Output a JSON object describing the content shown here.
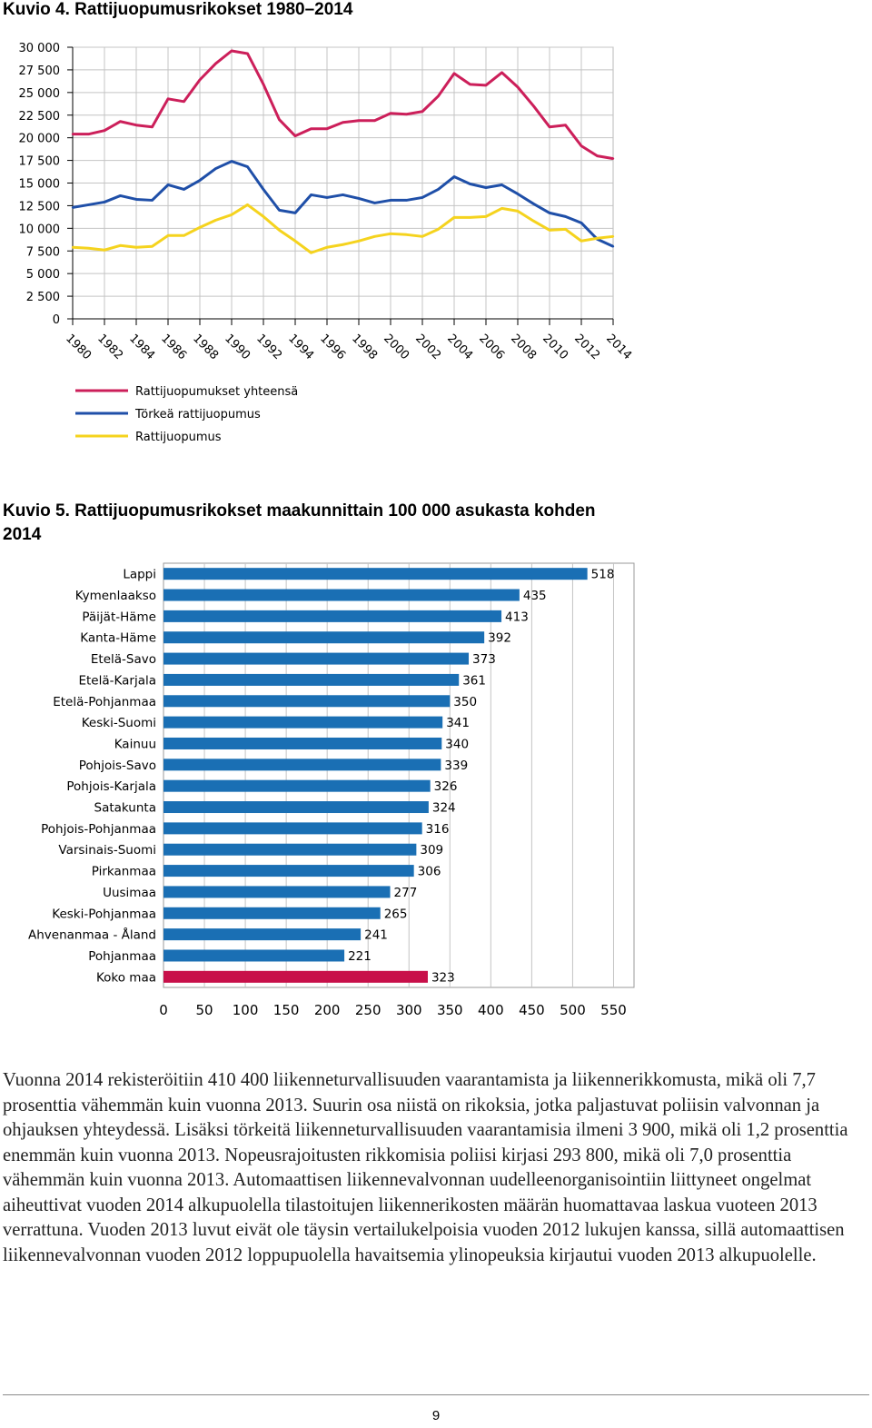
{
  "figure4": {
    "heading": "Kuvio 4. Rattijuopumusrikokset 1980–2014",
    "chart_data": {
      "type": "line",
      "title": "Kuvio 4. Rattijuopumusrikokset 1980–2014",
      "x": [
        1980,
        1981,
        1982,
        1983,
        1984,
        1985,
        1986,
        1987,
        1988,
        1989,
        1990,
        1991,
        1992,
        1993,
        1994,
        1995,
        1996,
        1997,
        1998,
        1999,
        2000,
        2001,
        2002,
        2003,
        2004,
        2005,
        2006,
        2007,
        2008,
        2009,
        2010,
        2011,
        2012,
        2013,
        2014
      ],
      "x_tick_labels": [
        "1980",
        "1982",
        "1984",
        "1986",
        "1988",
        "1990",
        "1992",
        "1994",
        "1996",
        "1998",
        "2000",
        "2002",
        "2004",
        "2006",
        "2008",
        "2010",
        "2012",
        "2014"
      ],
      "y_tick_labels": [
        "0",
        "2 500",
        "5 000",
        "7 500",
        "10 000",
        "12 500",
        "15 000",
        "17 500",
        "20 000",
        "22 500",
        "25 000",
        "27 500",
        "30 000"
      ],
      "ylim": [
        0,
        30000
      ],
      "xlabel": "",
      "ylabel": "",
      "grid": true,
      "series": [
        {
          "name": "Rattijuopumukset yhteensä",
          "color": "#cc1f5a",
          "values": [
            20400,
            20400,
            20800,
            21800,
            21400,
            21200,
            24300,
            24000,
            26400,
            28200,
            29600,
            29300,
            25900,
            22000,
            20200,
            21000,
            21000,
            21700,
            21900,
            21900,
            22700,
            22600,
            22900,
            24600,
            27100,
            25900,
            25800,
            27200,
            25600,
            23500,
            21200,
            21400,
            19100,
            18000,
            17700
          ]
        },
        {
          "name": "Törkeä rattijuopumus",
          "color": "#1f4fa8",
          "values": [
            12300,
            12600,
            12900,
            13600,
            13200,
            13100,
            14800,
            14300,
            15300,
            16600,
            17400,
            16800,
            14300,
            12000,
            11700,
            13700,
            13400,
            13700,
            13300,
            12800,
            13100,
            13100,
            13400,
            14300,
            15700,
            14900,
            14500,
            14800,
            13800,
            12700,
            11700,
            11300,
            10600,
            8800,
            8000
          ]
        },
        {
          "name": "Rattijuopumus",
          "color": "#f5d31e",
          "values": [
            7900,
            7800,
            7600,
            8100,
            7900,
            8000,
            9200,
            9200,
            10100,
            10900,
            11500,
            12600,
            11300,
            9800,
            8600,
            7300,
            7900,
            8200,
            8600,
            9100,
            9400,
            9300,
            9100,
            9900,
            11200,
            11200,
            11300,
            12200,
            11900,
            10800,
            9800,
            9900,
            8600,
            8900,
            9100
          ]
        }
      ],
      "legend": [
        "Rattijuopumukset yhteensä",
        "Törkeä rattijuopumus",
        "Rattijuopumus"
      ],
      "legend_position": "below"
    }
  },
  "figure5": {
    "heading": "Kuvio 5. Rattijuopumusrikokset maakunnittain 100 000 asukasta kohden 2014",
    "chart_data": {
      "type": "bar",
      "orientation": "horizontal",
      "title": "Kuvio 5. Rattijuopumusrikokset maakunnittain 100 000 asukasta kohden 2014",
      "categories": [
        "Lappi",
        "Kymenlaakso",
        "Päijät-Häme",
        "Kanta-Häme",
        "Etelä-Savo",
        "Etelä-Karjala",
        "Etelä-Pohjanmaa",
        "Keski-Suomi",
        "Kainuu",
        "Pohjois-Savo",
        "Pohjois-Karjala",
        "Satakunta",
        "Pohjois-Pohjanmaa",
        "Varsinais-Suomi",
        "Pirkanmaa",
        "Uusimaa",
        "Keski-Pohjanmaa",
        "Ahvenanmaa - Åland",
        "Pohjanmaa",
        "Koko maa"
      ],
      "values": [
        518,
        435,
        413,
        392,
        373,
        361,
        350,
        341,
        340,
        339,
        326,
        324,
        316,
        309,
        306,
        277,
        265,
        241,
        221,
        323
      ],
      "value_labels": [
        "518",
        "435",
        "413",
        "392",
        "373",
        "361",
        "350",
        "341",
        "340",
        "339",
        "326",
        "324",
        "316",
        "309",
        "306",
        "277",
        "265",
        "241",
        "221",
        "323"
      ],
      "bar_color": "#1a6fb4",
      "highlight_category": "Koko maa",
      "highlight_color": "#c8104a",
      "x_tick_labels": [
        "0",
        "50",
        "100",
        "150",
        "200",
        "250",
        "300",
        "350",
        "400",
        "450",
        "500",
        "550"
      ],
      "xlim": [
        0,
        575
      ],
      "grid": true,
      "xlabel": "",
      "ylabel": ""
    }
  },
  "body_text": "Vuonna 2014 rekisteröitiin 410 400 liikenneturvallisuuden vaarantamista ja liikennerikkomusta, mikä oli 7,7 prosenttia vähemmän kuin vuonna 2013. Suurin osa niistä on rikoksia, jotka paljastuvat poliisin valvonnan ja ohjauksen yhteydessä. Lisäksi törkeitä liikenneturvallisuuden vaarantamisia ilmeni 3 900, mikä oli 1,2 prosenttia enemmän kuin vuonna 2013. Nopeusrajoitusten rikkomisia poliisi kirjasi 293 800, mikä oli 7,0 prosenttia vähemmän kuin vuonna 2013. Automaattisen liikennevalvonnan uudelleenorganisointiin liittyneet ongelmat aiheuttivat vuoden 2014 alkupuolella tilastoitujen liikennerikosten määrän huomattavaa laskua vuoteen 2013 verrattuna. Vuoden 2013 luvut eivät ole täysin vertailukelpoisia vuoden 2012 lukujen kanssa, sillä automaattisen liikennevalvonnan vuoden 2012 loppupuolella havaitsemia ylinopeuksia kirjautui vuoden 2013 alkupuolelle.",
  "page_number": "9"
}
